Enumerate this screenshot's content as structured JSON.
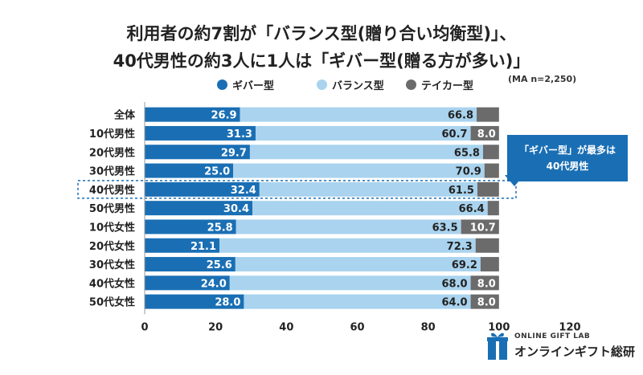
{
  "title_line1": "利用者の約7割が「バランス型(贈り合い均衡型)」、",
  "title_line2": "40代男性の約3人に1人は「ギバー型(贈る方が多い)」",
  "note": "(MA n=2,250)",
  "callout": {
    "line1": "「ギバー型」が最多は",
    "line2": "40代男性"
  },
  "logo": {
    "small": "ONLINE GIFT LAB",
    "big": "オンラインギフト総研"
  },
  "chart_data": {
    "type": "bar",
    "orientation": "horizontal",
    "stacked": true,
    "categories": [
      "全体",
      "10代男性",
      "20代男性",
      "30代男性",
      "40代男性",
      "50代男性",
      "10代女性",
      "20代女性",
      "30代女性",
      "40代女性",
      "50代女性"
    ],
    "series": [
      {
        "name": "ギバー型",
        "color": "#1a6fb4",
        "values": [
          26.9,
          31.3,
          29.7,
          25.0,
          32.4,
          30.4,
          25.8,
          21.1,
          25.6,
          24.0,
          28.0
        ]
      },
      {
        "name": "バランス型",
        "color": "#a9d3ee",
        "values": [
          66.8,
          60.7,
          65.8,
          70.9,
          61.5,
          66.4,
          63.5,
          72.3,
          69.2,
          68.0,
          64.0
        ]
      },
      {
        "name": "テイカー型",
        "color": "#6b6b6b",
        "values": [
          6.3,
          8.0,
          4.5,
          4.1,
          6.1,
          3.2,
          10.7,
          6.6,
          5.2,
          8.0,
          8.0
        ]
      }
    ],
    "value_labels_shown": [
      [
        "26.9",
        "66.8",
        ""
      ],
      [
        "31.3",
        "60.7",
        "8.0"
      ],
      [
        "29.7",
        "65.8",
        ""
      ],
      [
        "25.0",
        "70.9",
        ""
      ],
      [
        "32.4",
        "61.5",
        ""
      ],
      [
        "30.4",
        "66.4",
        ""
      ],
      [
        "25.8",
        "63.5",
        "10.7"
      ],
      [
        "21.1",
        "72.3",
        ""
      ],
      [
        "25.6",
        "69.2",
        ""
      ],
      [
        "24.0",
        "68.0",
        "8.0"
      ],
      [
        "28.0",
        "64.0",
        "8.0"
      ]
    ],
    "xlim": [
      0,
      120
    ],
    "xticks": [
      0,
      20,
      40,
      60,
      80,
      100,
      120
    ],
    "highlight_category": "40代男性",
    "legend_position": "top",
    "grid": false
  }
}
